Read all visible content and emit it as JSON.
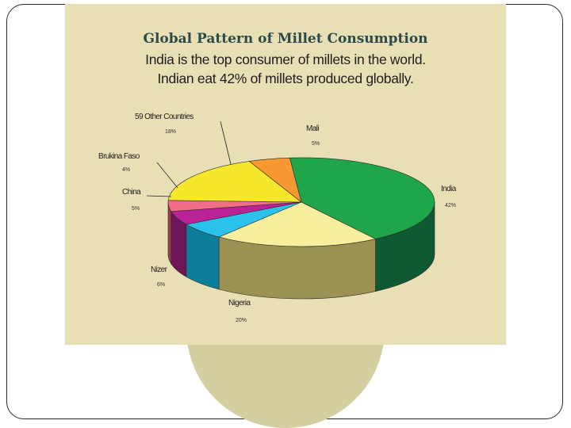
{
  "chart_data": {
    "type": "pie",
    "title": "Global Pattern of Millet Consumption",
    "subtitle": [
      "India is the top consumer of millets in the world.",
      "Indian eat 42% of millets produced globally."
    ],
    "slices": [
      {
        "label": "India",
        "value": 42,
        "display": "42%",
        "color": "#1fa64a",
        "side": "#0f5a33"
      },
      {
        "label": "Nigeria",
        "value": 20,
        "display": "20%",
        "color": "#f7ee9e",
        "side": "#9a9152"
      },
      {
        "label": "Nizer",
        "value": 6,
        "display": "6%",
        "color": "#2cc3ea",
        "side": "#0d7e9a"
      },
      {
        "label": "China",
        "value": 5,
        "display": "5%",
        "color": "#bb2297",
        "side": "#6e1558"
      },
      {
        "label": "Brukina Faso",
        "value": 4,
        "display": "4%",
        "color": "#f26d86",
        "side": "#9e3d4e"
      },
      {
        "label": "59 Other Countries",
        "value": 18,
        "display": "18%",
        "color": "#f6e72c",
        "side": "#a89b1c"
      },
      {
        "label": "Mali",
        "value": 5,
        "display": "5%",
        "color": "#f79833",
        "side": "#a8621e"
      }
    ],
    "legend": "none"
  },
  "colors": {
    "poster_bg": "#e8dfb5",
    "circle_bg": "#d4cfa0",
    "title_color": "#2c4a4a"
  }
}
